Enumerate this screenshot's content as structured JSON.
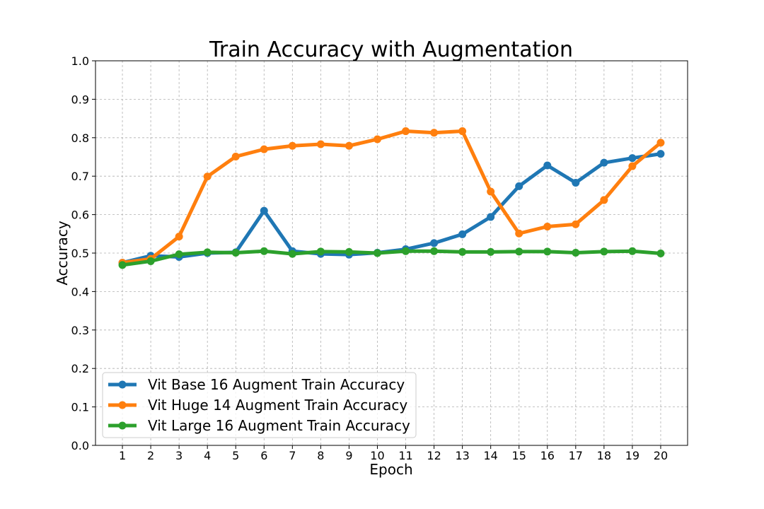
{
  "chart_data": {
    "type": "line",
    "title": "Train Accuracy with Augmentation",
    "xlabel": "Epoch",
    "ylabel": "Accuracy",
    "x": [
      1,
      2,
      3,
      4,
      5,
      6,
      7,
      8,
      9,
      10,
      11,
      12,
      13,
      14,
      15,
      16,
      17,
      18,
      19,
      20
    ],
    "ylim": [
      0.0,
      1.0
    ],
    "xlim": [
      0.05,
      20.95
    ],
    "yticks": [
      0.0,
      0.1,
      0.2,
      0.3,
      0.4,
      0.5,
      0.6,
      0.7,
      0.8,
      0.9,
      1.0
    ],
    "ytick_labels": [
      "0.0",
      "0.1",
      "0.2",
      "0.3",
      "0.4",
      "0.5",
      "0.6",
      "0.7",
      "0.8",
      "0.9",
      "1.0"
    ],
    "xtick_labels": [
      "1",
      "2",
      "3",
      "4",
      "5",
      "6",
      "7",
      "8",
      "9",
      "10",
      "11",
      "12",
      "13",
      "14",
      "15",
      "16",
      "17",
      "18",
      "19",
      "20"
    ],
    "grid": true,
    "legend_position": "lower-left",
    "series": [
      {
        "name": "Vit Base 16 Augment Train Accuracy",
        "color": "#1f77b4",
        "values": [
          0.475,
          0.493,
          0.49,
          0.5,
          0.502,
          0.61,
          0.505,
          0.498,
          0.496,
          0.501,
          0.51,
          0.526,
          0.549,
          0.594,
          0.674,
          0.728,
          0.683,
          0.735,
          0.747,
          0.758
        ]
      },
      {
        "name": "Vit Huge 14 Augment Train Accuracy",
        "color": "#ff7f0e",
        "values": [
          0.475,
          0.485,
          0.543,
          0.699,
          0.751,
          0.77,
          0.779,
          0.783,
          0.779,
          0.796,
          0.817,
          0.813,
          0.817,
          0.66,
          0.551,
          0.569,
          0.575,
          0.638,
          0.726,
          0.787
        ]
      },
      {
        "name": "Vit Large 16 Augment Train Accuracy",
        "color": "#2ca02c",
        "values": [
          0.469,
          0.479,
          0.497,
          0.502,
          0.501,
          0.505,
          0.498,
          0.504,
          0.503,
          0.5,
          0.505,
          0.505,
          0.503,
          0.503,
          0.504,
          0.504,
          0.501,
          0.504,
          0.505,
          0.499
        ]
      }
    ]
  }
}
